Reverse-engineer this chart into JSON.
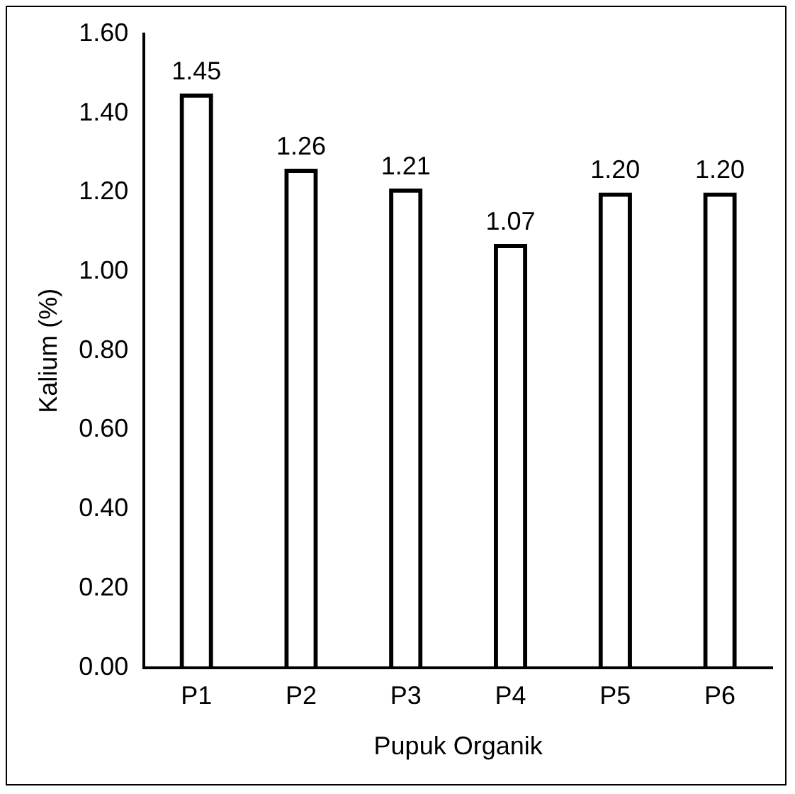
{
  "chart_data": {
    "type": "bar",
    "xlabel": "Pupuk Organik",
    "ylabel": "Kalium (%)",
    "categories": [
      "P1",
      "P2",
      "P3",
      "P4",
      "P5",
      "P6"
    ],
    "values": [
      1.45,
      1.26,
      1.21,
      1.07,
      1.2,
      1.2
    ],
    "color": "#000000",
    "ylim": [
      0,
      1.6
    ],
    "yticks": [
      {
        "value": 0,
        "label": "0.00"
      },
      {
        "value": 0.2,
        "label": "0.20"
      },
      {
        "value": 0.4,
        "label": "0.40"
      },
      {
        "value": 0.6,
        "label": "0.60"
      },
      {
        "value": 0.8,
        "label": "0.80"
      },
      {
        "value": 1.0,
        "label": "1.00"
      },
      {
        "value": 1.2,
        "label": "1.20"
      },
      {
        "value": 1.4,
        "label": "1.40"
      },
      {
        "value": 1.6,
        "label": "1.60"
      }
    ],
    "value_labels": [
      "1.45",
      "1.26",
      "1.21",
      "1.07",
      "1.20",
      "1.20"
    ],
    "grid": false,
    "legend": false
  }
}
